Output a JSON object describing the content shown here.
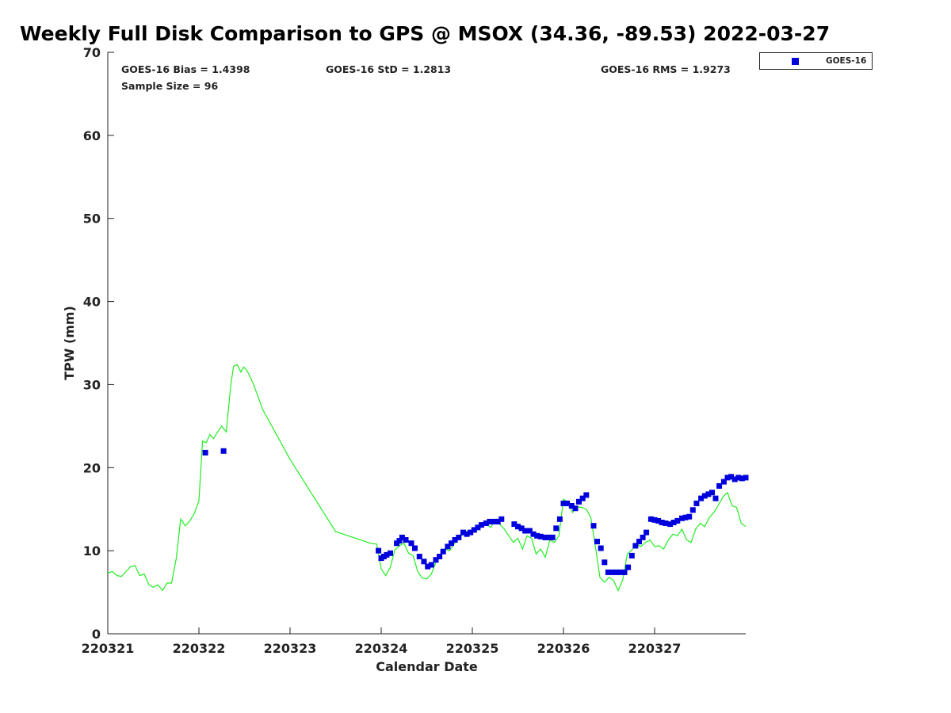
{
  "chart_data": {
    "type": "scatter",
    "title": "Weekly Full Disk Comparison to GPS @ MSOX (34.36, -89.53) 2022-03-27",
    "xlabel": "Calendar Date",
    "ylabel": "TPW (mm)",
    "xlim": [
      0,
      7
    ],
    "ylim": [
      0,
      70
    ],
    "x_tick_labels": [
      "220321",
      "220322",
      "220323",
      "220324",
      "220325",
      "220326",
      "220327"
    ],
    "y_ticks": [
      0,
      10,
      20,
      30,
      40,
      50,
      60,
      70
    ],
    "grid": false,
    "legend_placement": "top-right-outside",
    "stats": {
      "bias": "GOES-16 Bias = 1.4398",
      "std": "GOES-16 StD = 1.2813",
      "rms": "GOES-16 RMS = 1.9273",
      "sample": "Sample Size = 96"
    },
    "series": [
      {
        "name": "GOES-16",
        "kind": "markers",
        "color": "#0000dd",
        "x": [
          1.07,
          1.27,
          2.97,
          3.0,
          3.03,
          3.06,
          3.1,
          3.17,
          3.2,
          3.23,
          3.27,
          3.33,
          3.37,
          3.42,
          3.47,
          3.51,
          3.55,
          3.6,
          3.64,
          3.68,
          3.73,
          3.77,
          3.81,
          3.85,
          3.9,
          3.94,
          3.98,
          4.02,
          4.06,
          4.1,
          4.15,
          4.19,
          4.24,
          4.28,
          4.32,
          4.46,
          4.5,
          4.54,
          4.58,
          4.63,
          4.67,
          4.71,
          4.75,
          4.8,
          4.84,
          4.88,
          4.92,
          4.96,
          5.0,
          5.04,
          5.09,
          5.13,
          5.17,
          5.21,
          5.25,
          5.33,
          5.37,
          5.41,
          5.45,
          5.49,
          5.54,
          5.58,
          5.62,
          5.67,
          5.71,
          5.75,
          5.79,
          5.83,
          5.87,
          5.91,
          5.96,
          6.0,
          6.04,
          6.08,
          6.12,
          6.17,
          6.21,
          6.25,
          6.3,
          6.34,
          6.38,
          6.42,
          6.46,
          6.51,
          6.55,
          6.59,
          6.63,
          6.67,
          6.71,
          6.76,
          6.8,
          6.84,
          6.88,
          6.92,
          6.96,
          7.0
        ],
        "y": [
          21.8,
          22.0,
          10.0,
          9.1,
          9.3,
          9.5,
          9.7,
          10.9,
          11.2,
          11.6,
          11.3,
          10.9,
          10.3,
          9.3,
          8.7,
          8.1,
          8.3,
          8.9,
          9.3,
          9.9,
          10.5,
          10.9,
          11.3,
          11.6,
          12.2,
          12.0,
          12.2,
          12.5,
          12.8,
          13.1,
          13.3,
          13.5,
          13.5,
          13.5,
          13.8,
          13.2,
          12.9,
          12.7,
          12.4,
          12.4,
          12.0,
          11.8,
          11.7,
          11.6,
          11.6,
          11.6,
          12.7,
          13.8,
          15.7,
          15.7,
          15.4,
          15.1,
          15.9,
          16.3,
          16.7,
          13.0,
          11.1,
          10.3,
          8.6,
          7.4,
          7.4,
          7.4,
          7.4,
          7.4,
          8.0,
          9.4,
          10.6,
          11.1,
          11.6,
          12.2,
          13.8,
          13.7,
          13.6,
          13.4,
          13.3,
          13.2,
          13.4,
          13.6,
          13.9,
          14.0,
          14.1,
          14.9,
          15.7,
          16.3,
          16.6,
          16.8,
          17.0,
          16.3,
          17.8,
          18.3,
          18.8,
          18.9,
          18.6,
          18.8,
          18.7,
          18.8
        ]
      },
      {
        "name": "",
        "kind": "line",
        "color": "#22ee22",
        "x": [
          0.0,
          0.05,
          0.1,
          0.15,
          0.2,
          0.25,
          0.3,
          0.35,
          0.4,
          0.45,
          0.5,
          0.55,
          0.6,
          0.65,
          0.7,
          0.75,
          0.8,
          0.85,
          0.9,
          0.95,
          1.0,
          1.04,
          1.08,
          1.12,
          1.16,
          1.2,
          1.25,
          1.3,
          1.35,
          1.38,
          1.42,
          1.46,
          1.49,
          1.52,
          1.55,
          1.6,
          1.65,
          1.7,
          2.0,
          2.5,
          2.88,
          2.95,
          3.0,
          3.05,
          3.1,
          3.15,
          3.2,
          3.25,
          3.3,
          3.35,
          3.4,
          3.45,
          3.5,
          3.55,
          3.6,
          3.65,
          3.7,
          3.75,
          3.8,
          3.85,
          3.9,
          3.95,
          4.0,
          4.05,
          4.1,
          4.15,
          4.2,
          4.25,
          4.3,
          4.35,
          4.4,
          4.45,
          4.5,
          4.55,
          4.6,
          4.65,
          4.7,
          4.75,
          4.8,
          4.85,
          4.9,
          4.95,
          5.0,
          5.05,
          5.1,
          5.15,
          5.2,
          5.25,
          5.3,
          5.35,
          5.4,
          5.45,
          5.5,
          5.55,
          5.6,
          5.65,
          5.7,
          5.75,
          5.8,
          5.85,
          5.9,
          5.95,
          6.0,
          6.05,
          6.1,
          6.15,
          6.2,
          6.25,
          6.3,
          6.35,
          6.4,
          6.45,
          6.5,
          6.55,
          6.6,
          6.65,
          6.7,
          6.75,
          6.8,
          6.85,
          6.9,
          6.95,
          7.0
        ],
        "y": [
          7.3,
          7.5,
          7.0,
          6.9,
          7.5,
          8.1,
          8.2,
          7.0,
          7.2,
          5.9,
          5.6,
          5.9,
          5.2,
          6.1,
          6.1,
          9.0,
          13.8,
          13.0,
          13.6,
          14.5,
          16.0,
          23.2,
          23.0,
          24.0,
          23.5,
          24.2,
          25.0,
          24.3,
          30.0,
          32.2,
          32.4,
          31.5,
          32.1,
          31.8,
          31.2,
          30.0,
          28.5,
          27.0,
          21.0,
          12.3,
          10.9,
          10.8,
          7.8,
          7.0,
          8.0,
          10.1,
          10.6,
          10.9,
          9.7,
          9.4,
          7.5,
          6.7,
          6.6,
          7.2,
          8.6,
          9.5,
          10.2,
          10.0,
          10.8,
          11.5,
          12.0,
          12.4,
          12.2,
          12.5,
          12.9,
          13.3,
          12.8,
          13.6,
          13.2,
          12.6,
          11.8,
          11.0,
          11.5,
          10.2,
          11.8,
          11.5,
          9.6,
          10.2,
          9.2,
          11.3,
          11.0,
          11.8,
          16.2,
          15.8,
          14.6,
          15.3,
          15.2,
          15.0,
          14.0,
          10.5,
          6.8,
          6.2,
          6.8,
          6.4,
          5.2,
          6.5,
          9.6,
          10.1,
          10.8,
          10.5,
          11.0,
          11.3,
          10.5,
          10.6,
          10.2,
          11.3,
          12.0,
          11.8,
          12.6,
          11.3,
          11.0,
          12.6,
          13.3,
          12.9,
          14.0,
          14.6,
          15.5,
          16.5,
          17.0,
          15.4,
          15.2,
          13.3,
          12.9
        ]
      }
    ]
  }
}
